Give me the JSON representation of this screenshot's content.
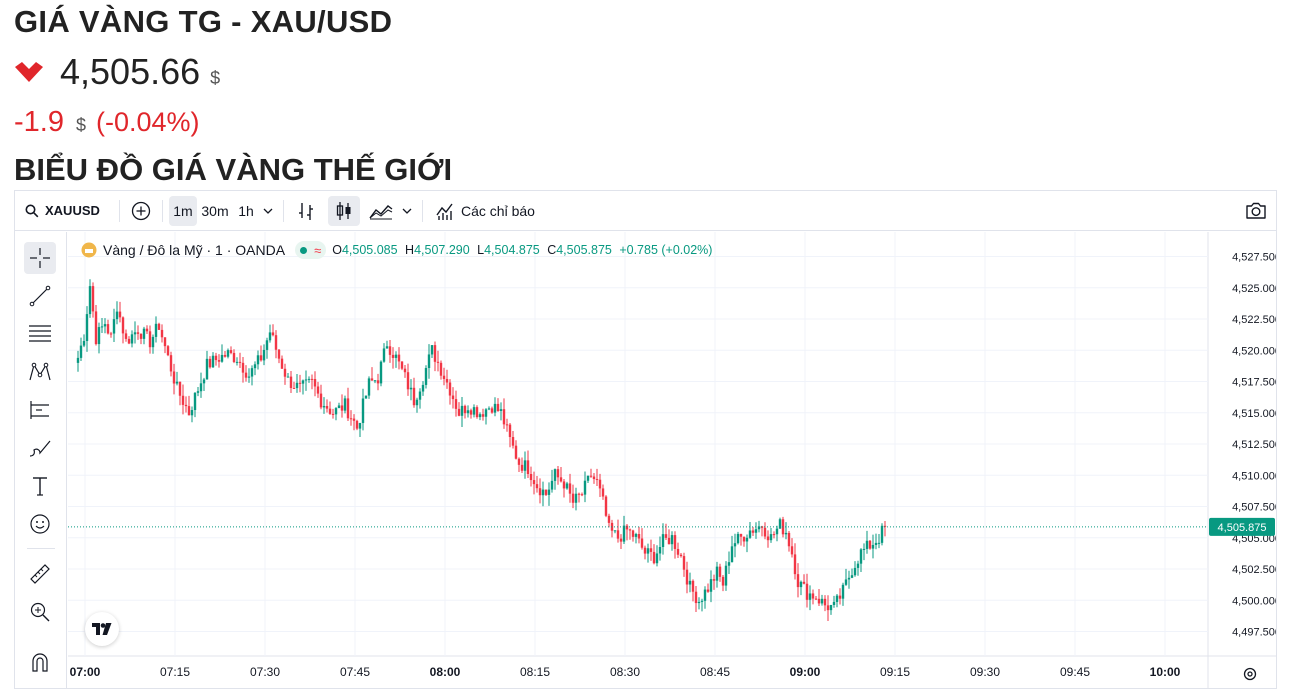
{
  "page": {
    "title": "GIÁ VÀNG TG - XAU/USD",
    "price": "4,505.66",
    "price_unit": "$",
    "change": "-1.9",
    "change_unit": "$",
    "change_pct": "(-0.04%)",
    "section_title": "BIỂU ĐỒ GIÁ VÀNG THẾ GIỚI",
    "direction_icon": "down-chevron-icon",
    "down_color": "#e0262b"
  },
  "toolbar": {
    "symbol": "XAUUSD",
    "intervals": [
      "1m",
      "30m",
      "1h"
    ],
    "selected_interval": "1m",
    "indicators_label": "Các chỉ báo"
  },
  "legend": {
    "title": "Vàng / Đô la Mỹ · 1 · OANDA",
    "o_label": "O",
    "o_value": "4,505.085",
    "h_label": "H",
    "h_value": "4,507.290",
    "l_label": "L",
    "l_value": "4,504.875",
    "c_label": "C",
    "c_value": "4,505.875",
    "change": "+0.785 (+0.02%)"
  },
  "chart_data": {
    "type": "candlestick",
    "up_color": "#089981",
    "down_color": "#f23645",
    "y_ticks": [
      "4,527.500",
      "4,525.000",
      "4,522.500",
      "4,520.000",
      "4,517.500",
      "4,515.000",
      "4,512.500",
      "4,510.000",
      "4,507.500",
      "4,505.000",
      "4,502.500",
      "4,500.000",
      "4,497.500"
    ],
    "x_ticks": [
      "07:00",
      "07:15",
      "07:30",
      "07:45",
      "08:00",
      "08:15",
      "08:30",
      "08:45",
      "09:00",
      "09:15",
      "09:30",
      "09:45",
      "10:00"
    ],
    "x_ticks_bold": [
      "07:00",
      "08:00",
      "09:00",
      "10:00"
    ],
    "last_price": "4,505.875",
    "ylim": [
      4496.5,
      4528.5
    ],
    "anchors": [
      [
        0,
        4519.4
      ],
      [
        2,
        4521.2
      ],
      [
        4,
        4525.2
      ],
      [
        6,
        4521.0
      ],
      [
        9,
        4522.2
      ],
      [
        11,
        4521.0
      ],
      [
        13,
        4523.6
      ],
      [
        16,
        4520.7
      ],
      [
        20,
        4521.7
      ],
      [
        24,
        4520.7
      ],
      [
        27,
        4522.0
      ],
      [
        30,
        4519.4
      ],
      [
        33,
        4516.9
      ],
      [
        37,
        4515.0
      ],
      [
        40,
        4516.9
      ],
      [
        43,
        4518.8
      ],
      [
        47,
        4519.4
      ],
      [
        50,
        4519.7
      ],
      [
        53,
        4519.4
      ],
      [
        57,
        4518.0
      ],
      [
        61,
        4519.4
      ],
      [
        64,
        4521.5
      ],
      [
        67,
        4519.4
      ],
      [
        70,
        4517.6
      ],
      [
        74,
        4516.9
      ],
      [
        78,
        4517.4
      ],
      [
        81,
        4516.0
      ],
      [
        85,
        4515.0
      ],
      [
        89,
        4515.6
      ],
      [
        93,
        4513.8
      ],
      [
        97,
        4517.3
      ],
      [
        100,
        4517.8
      ],
      [
        103,
        4520.6
      ],
      [
        106,
        4519.4
      ],
      [
        109,
        4517.8
      ],
      [
        112,
        4516.0
      ],
      [
        115,
        4517.8
      ],
      [
        118,
        4520.0
      ],
      [
        121,
        4518.5
      ],
      [
        124,
        4516.9
      ],
      [
        127,
        4515.0
      ],
      [
        130,
        4515.6
      ],
      [
        134,
        4515.0
      ],
      [
        138,
        4515.6
      ],
      [
        141,
        4515.0
      ],
      [
        144,
        4512.8
      ],
      [
        147,
        4511.0
      ],
      [
        150,
        4510.6
      ],
      [
        153,
        4509.2
      ],
      [
        156,
        4508.5
      ],
      [
        159,
        4510.0
      ],
      [
        162,
        4509.4
      ],
      [
        165,
        4507.8
      ],
      [
        168,
        4508.5
      ],
      [
        171,
        4510.0
      ],
      [
        173,
        4509.4
      ],
      [
        175,
        4507.8
      ],
      [
        177,
        4505.6
      ],
      [
        180,
        4505.0
      ],
      [
        183,
        4505.6
      ],
      [
        186,
        4505.0
      ],
      [
        189,
        4503.8
      ],
      [
        192,
        4503.5
      ],
      [
        195,
        4504.7
      ],
      [
        198,
        4505.0
      ],
      [
        201,
        4503.5
      ],
      [
        204,
        4501.0
      ],
      [
        207,
        4500.0
      ],
      [
        210,
        4501.0
      ],
      [
        213,
        4502.2
      ],
      [
        215,
        4501.3
      ],
      [
        218,
        4504.5
      ],
      [
        221,
        4505.0
      ],
      [
        224,
        4505.6
      ],
      [
        228,
        4506.0
      ],
      [
        231,
        4505.0
      ],
      [
        234,
        4506.0
      ],
      [
        236,
        4505.5
      ],
      [
        238,
        4503.8
      ],
      [
        240,
        4501.5
      ],
      [
        243,
        4500.6
      ],
      [
        246,
        4500.3
      ],
      [
        249,
        4499.6
      ],
      [
        252,
        4499.4
      ],
      [
        255,
        4500.7
      ],
      [
        258,
        4502.5
      ],
      [
        261,
        4503.8
      ],
      [
        264,
        4504.4
      ],
      [
        267,
        4505.0
      ],
      [
        269,
        4505.9
      ]
    ]
  }
}
